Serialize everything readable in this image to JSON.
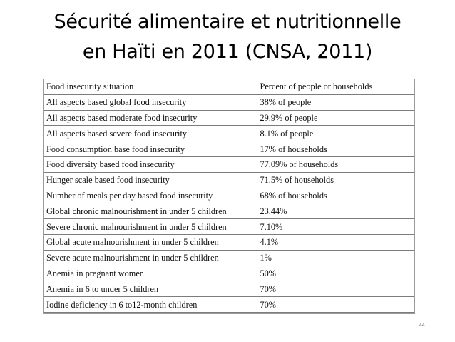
{
  "title": {
    "line1": "Sécurité alimentaire et nutritionnelle",
    "line2": "en Haïti en 2011 (CNSA, 2011)"
  },
  "table": {
    "headers": [
      "Food insecurity situation",
      "Percent of people or households"
    ],
    "rows": [
      [
        "All aspects based global food insecurity",
        "38% of people"
      ],
      [
        "All aspects based moderate food insecurity",
        "29.9% of people"
      ],
      [
        "All aspects based severe  food insecurity",
        "8.1% of people"
      ],
      [
        "Food consumption base food insecurity",
        "17% of households"
      ],
      [
        "Food diversity based food insecurity",
        "77.09% of households"
      ],
      [
        "Hunger scale based food insecurity",
        "71.5% of households"
      ],
      [
        "Number of meals per day based food insecurity",
        "68% of households"
      ],
      [
        "Global chronic malnourishment in under 5 children",
        "23.44%"
      ],
      [
        "Severe chronic malnourishment in under 5 children",
        "7.10%"
      ],
      [
        "Global acute malnourishment in under 5 children",
        "4.1%"
      ],
      [
        "Severe acute malnourishment in under 5 children",
        "1%"
      ],
      [
        "Anemia in pregnant women",
        "50%"
      ],
      [
        "Anemia in 6 to under 5 children",
        "70%"
      ],
      [
        "Iodine deficiency in 6 to12-month children",
        "70%"
      ]
    ]
  },
  "page_number": "44"
}
